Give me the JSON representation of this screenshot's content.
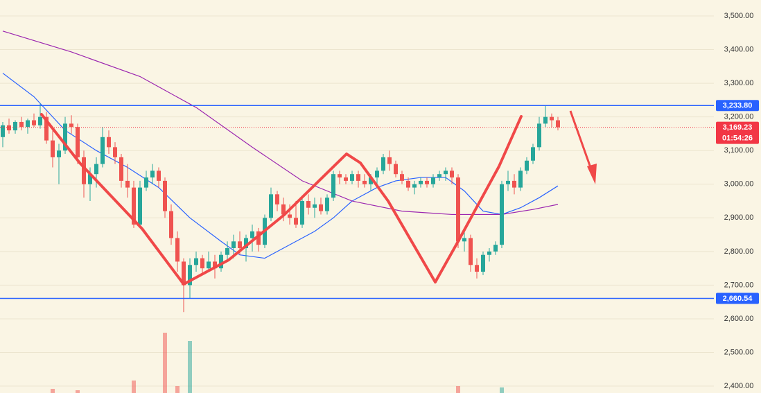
{
  "chart_data": {
    "type": "candlestick",
    "ylim": [
      2379.5,
      3547.4
    ],
    "yticks": [
      {
        "value": 2400,
        "label": "2,400.00"
      },
      {
        "value": 2500,
        "label": "2,500.00"
      },
      {
        "value": 2600,
        "label": "2,600.00"
      },
      {
        "value": 2700,
        "label": "2,700.00"
      },
      {
        "value": 2800,
        "label": "2,800.00"
      },
      {
        "value": 2900,
        "label": "2,900.00"
      },
      {
        "value": 3000,
        "label": "3,000.00"
      },
      {
        "value": 3100,
        "label": "3,100.00"
      },
      {
        "value": 3200,
        "label": "3,200.00"
      },
      {
        "value": 3300,
        "label": "3,300.00"
      },
      {
        "value": 3400,
        "label": "3,400.00"
      },
      {
        "value": 3500,
        "label": "3,500.00"
      }
    ],
    "grid": true,
    "up_color": "#26a69a",
    "down_color": "#ef5350",
    "open": [
      3140,
      3175,
      3160,
      3185,
      3170,
      3190,
      3175,
      3200,
      3130,
      3080,
      3100,
      3180,
      3170,
      3080,
      3000,
      3030,
      3060,
      3140,
      3110,
      3080,
      3010,
      2990,
      2880,
      2990,
      3020,
      3040,
      3010,
      2920,
      2840,
      2770,
      2700,
      2760,
      2780,
      2750,
      2770,
      2750,
      2790,
      2810,
      2830,
      2810,
      2840,
      2860,
      2820,
      2900,
      2970,
      2940,
      2910,
      2900,
      2880,
      2950,
      2930,
      2940,
      2920,
      2960,
      3030,
      3020,
      3010,
      3030,
      3010,
      3000,
      3020,
      3040,
      3080,
      3060,
      3030,
      3010,
      2990,
      3000,
      3010,
      3000,
      3020,
      3030,
      3040,
      3020,
      2830,
      2840,
      2760,
      2740,
      2790,
      2800,
      2820,
      3000,
      3010,
      2990,
      3040,
      3070,
      3110,
      3180,
      3200,
      3190
    ],
    "high": [
      3185,
      3195,
      3190,
      3200,
      3195,
      3210,
      3240,
      3215,
      3160,
      3120,
      3200,
      3205,
      3180,
      3100,
      3050,
      3080,
      3170,
      3160,
      3125,
      3090,
      3060,
      3010,
      3010,
      3040,
      3060,
      3050,
      3020,
      2940,
      2860,
      2780,
      2780,
      2800,
      2790,
      2800,
      2790,
      2800,
      2830,
      2850,
      2860,
      2850,
      2880,
      2870,
      2910,
      2990,
      2980,
      2960,
      2940,
      2950,
      2960,
      2970,
      2960,
      2960,
      2970,
      3040,
      3040,
      3030,
      3040,
      3040,
      3030,
      3030,
      3050,
      3090,
      3100,
      3070,
      3040,
      3020,
      3010,
      3020,
      3020,
      3030,
      3040,
      3050,
      3050,
      3030,
      2860,
      2850,
      2780,
      2800,
      2810,
      2830,
      3010,
      3040,
      3030,
      3050,
      3080,
      3120,
      3200,
      3235,
      3210,
      3200
    ],
    "low": [
      3110,
      3150,
      3150,
      3160,
      3150,
      3170,
      3165,
      3120,
      3050,
      3000,
      3090,
      3150,
      3060,
      2960,
      2950,
      2990,
      3050,
      3090,
      3060,
      2990,
      2960,
      2870,
      2870,
      2980,
      3000,
      2990,
      2900,
      2820,
      2740,
      2620,
      2660,
      2740,
      2730,
      2740,
      2720,
      2740,
      2770,
      2780,
      2790,
      2770,
      2800,
      2800,
      2810,
      2890,
      2920,
      2890,
      2880,
      2870,
      2870,
      2910,
      2900,
      2910,
      2910,
      2950,
      3000,
      3000,
      3000,
      2990,
      2990,
      2980,
      3000,
      3030,
      3040,
      3020,
      3000,
      2980,
      2970,
      2990,
      2990,
      2990,
      3010,
      3010,
      3000,
      2810,
      2800,
      2740,
      2720,
      2730,
      2770,
      2790,
      2810,
      2980,
      2970,
      2980,
      3030,
      3060,
      3100,
      3170,
      3170,
      3160
    ],
    "close": [
      3175,
      3160,
      3185,
      3170,
      3190,
      3175,
      3200,
      3130,
      3080,
      3100,
      3180,
      3170,
      3080,
      3000,
      3030,
      3060,
      3140,
      3110,
      3080,
      3010,
      2990,
      2880,
      2990,
      3020,
      3040,
      3010,
      2920,
      2840,
      2770,
      2700,
      2760,
      2780,
      2750,
      2770,
      2750,
      2790,
      2810,
      2830,
      2810,
      2840,
      2860,
      2820,
      2900,
      2970,
      2940,
      2910,
      2900,
      2880,
      2950,
      2930,
      2940,
      2920,
      2960,
      3030,
      3020,
      3010,
      3030,
      3010,
      3000,
      3020,
      3040,
      3080,
      3060,
      3030,
      3010,
      2990,
      3000,
      3010,
      3000,
      3020,
      3030,
      3040,
      3020,
      2830,
      2840,
      2760,
      2740,
      2790,
      2800,
      2820,
      3000,
      3010,
      2990,
      3040,
      3070,
      3110,
      3180,
      3200,
      3190,
      3169.23
    ],
    "volume": [
      0,
      0,
      0,
      0,
      0,
      0,
      0,
      0,
      6,
      0,
      0,
      0,
      4,
      0,
      0,
      0,
      0,
      0,
      0,
      0,
      0,
      18,
      0,
      0,
      0,
      0,
      87,
      0,
      10,
      0,
      75,
      0,
      0,
      0,
      0,
      0,
      0,
      0,
      0,
      0,
      0,
      0,
      0,
      0,
      0,
      0,
      0,
      0,
      0,
      0,
      0,
      0,
      0,
      0,
      0,
      0,
      0,
      0,
      0,
      0,
      0,
      0,
      0,
      0,
      0,
      0,
      0,
      0,
      0,
      0,
      0,
      0,
      0,
      10,
      0,
      0,
      0,
      0,
      0,
      0,
      8,
      0,
      0,
      0,
      0,
      0,
      0,
      0,
      0,
      0
    ],
    "volume_lim": [
      0,
      100
    ],
    "overlays": [
      {
        "color": "#2962ff",
        "x": [
          0,
          5,
          10,
          15,
          20,
          25,
          30,
          35,
          38,
          42,
          46,
          50,
          53,
          56,
          60,
          63,
          67,
          71,
          74,
          77,
          80,
          83,
          86,
          89
        ],
        "values": [
          3330,
          3260,
          3160,
          3100,
          3050,
          2990,
          2900,
          2830,
          2790,
          2780,
          2820,
          2860,
          2900,
          2950,
          2990,
          3010,
          3020,
          3020,
          2980,
          2920,
          2910,
          2930,
          2960,
          2995
        ]
      },
      {
        "color": "#9c27b0",
        "x": [
          0,
          11,
          22,
          31,
          40,
          48,
          56,
          64,
          72,
          80,
          85,
          89
        ],
        "values": [
          3455,
          3393,
          3320,
          3228,
          3110,
          3010,
          2950,
          2920,
          2910,
          2910,
          2925,
          2940
        ]
      }
    ],
    "levels": [
      {
        "value": 3233.8,
        "label": "3,233.80",
        "color": "#2962ff"
      },
      {
        "value": 2660.54,
        "label": "2,660.54",
        "color": "#2962ff"
      }
    ],
    "last_price": {
      "value": 3169.23,
      "label": "3,169.23",
      "countdown": "01:54:26",
      "color": "#f23645"
    }
  }
}
